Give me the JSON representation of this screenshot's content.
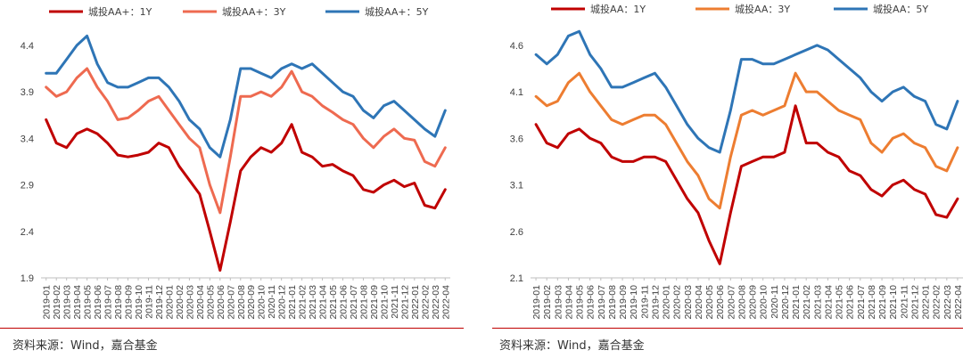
{
  "months": [
    "2019-01",
    "2019-02",
    "2019-03",
    "2019-04",
    "2019-05",
    "2019-06",
    "2019-07",
    "2019-08",
    "2019-09",
    "2019-10",
    "2019-11",
    "2019-12",
    "2020-01",
    "2020-02",
    "2020-03",
    "2020-04",
    "2020-05",
    "2020-06",
    "2020-07",
    "2020-08",
    "2020-09",
    "2020-10",
    "2020-11",
    "2020-12",
    "2021-01",
    "2021-02",
    "2021-03",
    "2021-04",
    "2021-05",
    "2021-06",
    "2021-07",
    "2021-08",
    "2021-09",
    "2021-10",
    "2021-11",
    "2021-12",
    "2022-01",
    "2022-02",
    "2022-03",
    "2022-04"
  ],
  "colors": {
    "y1": "#c00000",
    "y3": "#ee6a50",
    "y5": "#2e75b6",
    "y3_right": "#ed7d31",
    "rule": "#c00000",
    "axis": "#bfbfbf"
  },
  "chart_data": [
    {
      "type": "line",
      "ylim": [
        1.9,
        4.6
      ],
      "yticks": [
        "1.9",
        "2.4",
        "2.9",
        "3.4",
        "3.9",
        "4.4"
      ],
      "legend_position": "top",
      "series": [
        {
          "name": "城投AA+：1Y",
          "color": "#c00000",
          "values": [
            3.6,
            3.35,
            3.3,
            3.45,
            3.5,
            3.45,
            3.35,
            3.22,
            3.2,
            3.22,
            3.25,
            3.35,
            3.3,
            3.1,
            2.95,
            2.8,
            2.4,
            1.98,
            2.5,
            3.05,
            3.2,
            3.3,
            3.25,
            3.35,
            3.55,
            3.25,
            3.2,
            3.1,
            3.12,
            3.05,
            3.0,
            2.85,
            2.82,
            2.9,
            2.95,
            2.88,
            2.92,
            2.68,
            2.65,
            2.85
          ]
        },
        {
          "name": "城投AA+：3Y",
          "color": "#ee6a50",
          "values": [
            3.95,
            3.85,
            3.9,
            4.05,
            4.15,
            3.95,
            3.8,
            3.6,
            3.62,
            3.7,
            3.8,
            3.85,
            3.7,
            3.55,
            3.4,
            3.3,
            2.9,
            2.6,
            3.2,
            3.85,
            3.85,
            3.9,
            3.85,
            3.95,
            4.12,
            3.9,
            3.85,
            3.75,
            3.68,
            3.6,
            3.55,
            3.4,
            3.3,
            3.42,
            3.5,
            3.4,
            3.38,
            3.15,
            3.1,
            3.3
          ]
        },
        {
          "name": "城投AA+：5Y",
          "color": "#2e75b6",
          "values": [
            4.1,
            4.1,
            4.25,
            4.4,
            4.5,
            4.2,
            4.0,
            3.95,
            3.95,
            4.0,
            4.05,
            4.05,
            3.95,
            3.8,
            3.6,
            3.5,
            3.3,
            3.2,
            3.6,
            4.15,
            4.15,
            4.1,
            4.05,
            4.15,
            4.2,
            4.15,
            4.2,
            4.1,
            4.0,
            3.9,
            3.85,
            3.7,
            3.62,
            3.75,
            3.8,
            3.7,
            3.6,
            3.5,
            3.42,
            3.7
          ]
        }
      ]
    },
    {
      "type": "line",
      "ylim": [
        2.1,
        4.8
      ],
      "yticks": [
        "2.1",
        "2.6",
        "3.1",
        "3.6",
        "4.1",
        "4.6"
      ],
      "legend_position": "top",
      "series": [
        {
          "name": "城投AA：1Y",
          "color": "#c00000",
          "values": [
            3.75,
            3.55,
            3.5,
            3.65,
            3.7,
            3.6,
            3.55,
            3.4,
            3.35,
            3.35,
            3.4,
            3.4,
            3.35,
            3.15,
            2.95,
            2.8,
            2.5,
            2.25,
            2.8,
            3.3,
            3.35,
            3.4,
            3.4,
            3.45,
            3.95,
            3.55,
            3.55,
            3.45,
            3.4,
            3.25,
            3.2,
            3.05,
            2.98,
            3.1,
            3.15,
            3.05,
            3.0,
            2.78,
            2.75,
            2.95
          ]
        },
        {
          "name": "城投AA：3Y",
          "color": "#ed7d31",
          "values": [
            4.05,
            3.95,
            4.0,
            4.2,
            4.3,
            4.1,
            3.95,
            3.8,
            3.75,
            3.8,
            3.85,
            3.85,
            3.75,
            3.55,
            3.35,
            3.2,
            2.95,
            2.85,
            3.4,
            3.85,
            3.9,
            3.85,
            3.9,
            3.95,
            4.3,
            4.1,
            4.1,
            4.0,
            3.9,
            3.85,
            3.8,
            3.55,
            3.45,
            3.6,
            3.65,
            3.55,
            3.5,
            3.3,
            3.25,
            3.5
          ]
        },
        {
          "name": "城投AA：5Y",
          "color": "#2e75b6",
          "values": [
            4.5,
            4.4,
            4.5,
            4.7,
            4.75,
            4.5,
            4.35,
            4.15,
            4.15,
            4.2,
            4.25,
            4.3,
            4.15,
            3.95,
            3.75,
            3.6,
            3.5,
            3.45,
            3.9,
            4.45,
            4.45,
            4.4,
            4.4,
            4.45,
            4.5,
            4.55,
            4.6,
            4.55,
            4.45,
            4.35,
            4.25,
            4.1,
            4.0,
            4.1,
            4.15,
            4.05,
            4.0,
            3.75,
            3.7,
            4.0
          ]
        }
      ]
    }
  ],
  "source_left": "资料来源：Wind，嘉合基金",
  "source_right": "资料来源：Wind，嘉合基金"
}
